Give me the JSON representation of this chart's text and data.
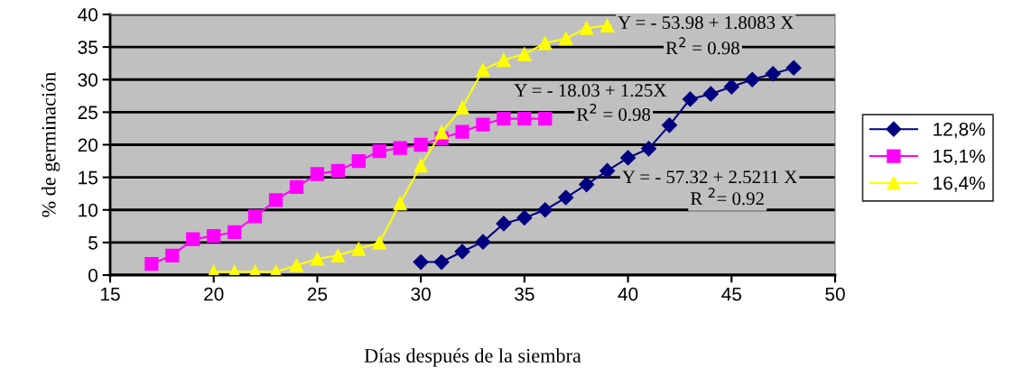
{
  "chart_data": {
    "type": "line",
    "xlabel": "Días después de la siembra",
    "ylabel": "% de germinación",
    "xlim": [
      15,
      50
    ],
    "xticks": [
      15,
      20,
      25,
      30,
      35,
      40,
      45,
      50
    ],
    "ylim": [
      0,
      40
    ],
    "yticks": [
      0,
      5,
      10,
      15,
      20,
      25,
      30,
      35,
      40
    ],
    "grid": "y",
    "legend": "right",
    "line_style": "solid",
    "series": [
      {
        "name": "12,8%",
        "color": "#000080",
        "marker": "diamond",
        "x": [
          30,
          31,
          32,
          33,
          34,
          35,
          36,
          37,
          38,
          39,
          40,
          41,
          42,
          43,
          44,
          45,
          46,
          47,
          48
        ],
        "values": [
          2,
          2,
          3.6,
          5.1,
          7.9,
          8.8,
          10,
          11.9,
          13.9,
          16,
          18,
          19.4,
          23,
          27,
          27.8,
          28.9,
          30,
          30.9,
          31.8
        ]
      },
      {
        "name": "15,1%",
        "color": "#ff00ff",
        "marker": "square",
        "x": [
          17,
          18,
          19,
          20,
          21,
          22,
          23,
          24,
          25,
          26,
          27,
          28,
          29,
          30,
          31,
          32,
          33,
          34,
          35,
          36
        ],
        "values": [
          1.7,
          3,
          5.5,
          6,
          6.6,
          9,
          11.5,
          13.5,
          15.5,
          16,
          17.5,
          19,
          19.5,
          20,
          21,
          22,
          23.1,
          24,
          24,
          24
        ]
      },
      {
        "name": "16,4%",
        "color": "#ffff00",
        "marker": "triangle",
        "x": [
          20,
          21,
          22,
          23,
          24,
          25,
          26,
          27,
          28,
          29,
          30,
          31,
          32,
          33,
          34,
          35,
          36,
          37,
          38,
          39
        ],
        "values": [
          0.5,
          0.5,
          0.5,
          0.5,
          1.5,
          2.5,
          3,
          4,
          5,
          11,
          16.8,
          21.9,
          25.7,
          31.5,
          33,
          33.9,
          35.6,
          36.3,
          37.9,
          38.3
        ]
      }
    ],
    "annotations": [
      "Y = - 53.98 + 1.8083 X",
      "R$^{2}$ = 0.98",
      "Y = - 18.03 + 1.25X",
      "R$^{2}$ = 0.98",
      "Y = - 57.32 + 2.5211 X",
      "R $^{2}$= 0.92"
    ]
  }
}
